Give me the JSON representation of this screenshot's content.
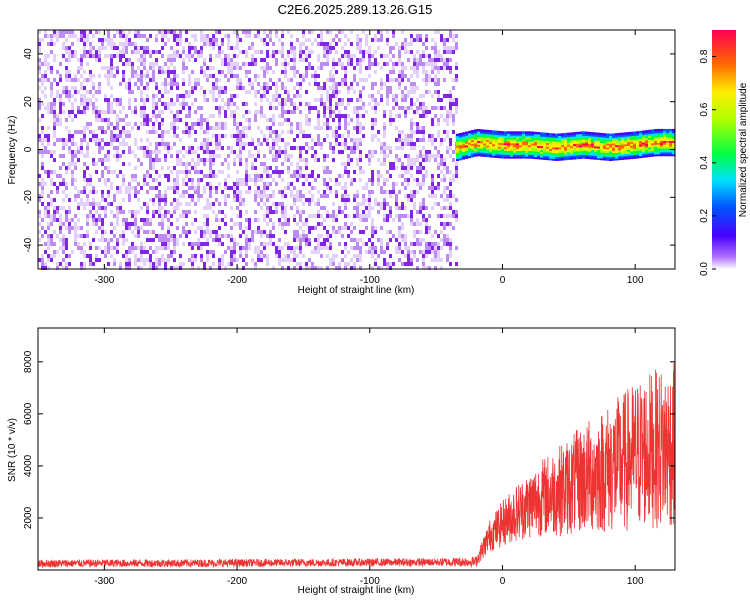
{
  "figure_title": "C2E6.2025.289.13.26.G15",
  "colors": {
    "snr_line": "#ee3333",
    "spectrogram_noise": "#7a1ae8",
    "background": "#ffffff",
    "axes": "#000000"
  },
  "chart_data": [
    {
      "type": "heatmap",
      "title": "C2E6.2025.289.13.26.G15",
      "xlabel": "Height of straight line (km)",
      "ylabel": "Frequency (Hz)",
      "xlim": [
        -350,
        130
      ],
      "ylim": [
        -50,
        50
      ],
      "x_ticks": [
        -300,
        -200,
        -100,
        0,
        100
      ],
      "x_tick_labels": [
        "-300",
        "-200",
        "-100",
        "0",
        "100"
      ],
      "y_ticks": [
        -40,
        -20,
        0,
        20,
        40
      ],
      "y_tick_labels": [
        "-40",
        "-20",
        "0",
        "20",
        "40"
      ],
      "grid": false,
      "colorbar": {
        "label": "Normalized spectral amplitude",
        "range": [
          0.0,
          0.9
        ],
        "ticks": [
          0.0,
          0.2,
          0.4,
          0.6,
          0.8
        ],
        "tick_labels": [
          "0.0",
          "0.2",
          "0.4",
          "0.6",
          "0.8"
        ],
        "colormap": "rainbow"
      },
      "regions": [
        {
          "x_from": -350,
          "x_to": -35,
          "content": "noise",
          "amplitude_range": [
            0.0,
            0.15
          ]
        },
        {
          "x_from": -35,
          "x_to": 130,
          "content": "signal",
          "center_frequency_hz": 2,
          "bandwidth_hz": 6,
          "peak_amplitude": 0.9
        }
      ],
      "signal_center_trace": {
        "x": [
          -35,
          -20,
          0,
          20,
          40,
          60,
          80,
          100,
          115,
          130
        ],
        "frequency_hz": [
          1,
          3,
          2,
          2,
          1,
          2,
          1,
          2,
          3,
          3
        ]
      }
    },
    {
      "type": "line",
      "xlabel": "Height of straight line (km)",
      "ylabel": "SNR (10 * v/v)",
      "xlim": [
        -350,
        130
      ],
      "ylim": [
        0,
        9300
      ],
      "x_ticks": [
        -300,
        -200,
        -100,
        0,
        100
      ],
      "x_tick_labels": [
        "-300",
        "-200",
        "-100",
        "0",
        "100"
      ],
      "y_ticks": [
        2000,
        4000,
        6000,
        8000
      ],
      "y_tick_labels": [
        "2000",
        "4000",
        "6000",
        "8000"
      ],
      "grid": false,
      "series": [
        {
          "color": "#ee3333",
          "x": [
            -350,
            -300,
            -250,
            -200,
            -150,
            -100,
            -50,
            -20,
            -10,
            0,
            10,
            20,
            30,
            40,
            50,
            60,
            70,
            80,
            90,
            100,
            110,
            120,
            130
          ],
          "y": [
            250,
            260,
            260,
            270,
            280,
            290,
            300,
            320,
            1300,
            1800,
            2200,
            2500,
            2800,
            3000,
            3200,
            3500,
            3700,
            3900,
            4100,
            4400,
            4600,
            4700,
            4800
          ],
          "spread": [
            150,
            150,
            150,
            150,
            150,
            150,
            150,
            200,
            600,
            900,
            1100,
            1300,
            1500,
            1700,
            1900,
            2100,
            2300,
            2500,
            2700,
            2900,
            3000,
            3100,
            3200
          ],
          "samples_per_km": 5
        }
      ]
    }
  ]
}
